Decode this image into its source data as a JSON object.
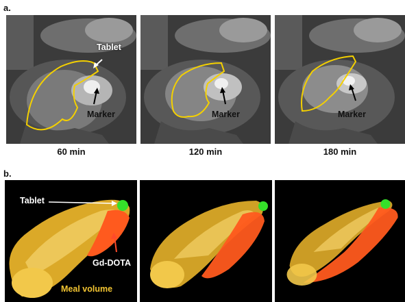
{
  "panel_a": {
    "letter": "a.",
    "frames": [
      {
        "time_label": "60 min",
        "tablet_label": "Tablet",
        "marker_label": "Marker"
      },
      {
        "time_label": "120 min",
        "marker_label": "Marker"
      },
      {
        "time_label": "180 min",
        "marker_label": "Marker"
      }
    ]
  },
  "panel_b": {
    "letter": "b.",
    "labels": {
      "tablet": "Tablet",
      "contrast": "Gd-DOTA",
      "meal": "Meal volume"
    }
  },
  "colors": {
    "contour": "#f4d000",
    "meal_volume": "#f2c431",
    "gd_dota": "#ff5a1e",
    "tablet": "#35e02a",
    "background_3d": "#000000"
  }
}
